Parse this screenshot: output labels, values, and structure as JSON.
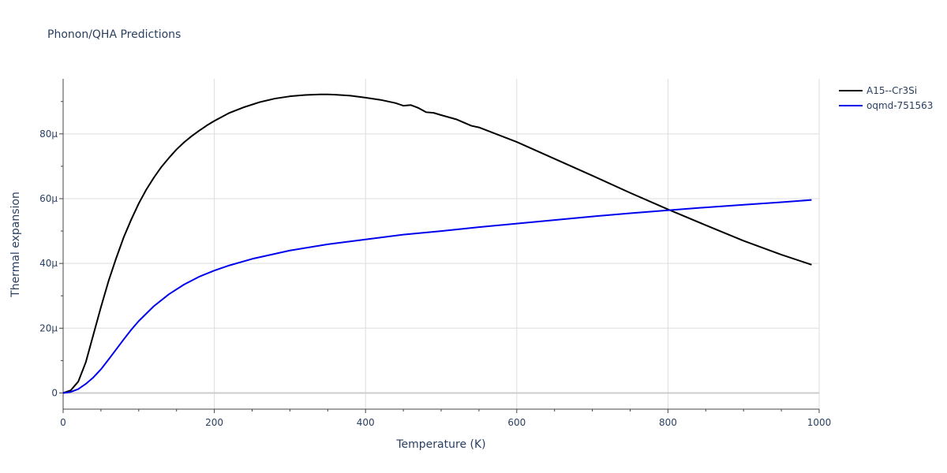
{
  "chart_data": {
    "type": "line",
    "title": "Phonon/QHA Predictions",
    "xlabel": "Temperature (K)",
    "ylabel": "Thermal expansion",
    "xlim": [
      0,
      1000
    ],
    "ylim": [
      -5e-06,
      9.7e-05
    ],
    "x_ticks": [
      0,
      200,
      400,
      600,
      800,
      1000
    ],
    "x_tick_labels": [
      "0",
      "200",
      "400",
      "600",
      "800",
      "1000"
    ],
    "y_ticks": [
      0,
      2e-05,
      4e-05,
      6e-05,
      8e-05
    ],
    "y_tick_labels": [
      "0",
      "20μ",
      "40μ",
      "60μ",
      "80μ"
    ],
    "grid": true,
    "legend_position": "top-right",
    "series": [
      {
        "name": "A15--Cr3Si",
        "color": "#000000",
        "x": [
          0,
          10,
          20,
          30,
          40,
          50,
          60,
          70,
          80,
          90,
          100,
          110,
          120,
          130,
          140,
          150,
          160,
          170,
          180,
          190,
          200,
          220,
          240,
          260,
          280,
          300,
          320,
          340,
          350,
          360,
          380,
          400,
          420,
          440,
          450,
          460,
          470,
          480,
          490,
          500,
          520,
          540,
          550,
          600,
          650,
          700,
          750,
          800,
          850,
          900,
          950,
          990
        ],
        "y": [
          0,
          8e-07,
          3.5e-06,
          9.5e-06,
          1.8e-05,
          2.65e-05,
          3.45e-05,
          4.15e-05,
          4.8e-05,
          5.35e-05,
          5.85e-05,
          6.28e-05,
          6.65e-05,
          6.98e-05,
          7.26e-05,
          7.52e-05,
          7.74e-05,
          7.93e-05,
          8.1e-05,
          8.26e-05,
          8.4e-05,
          8.65e-05,
          8.83e-05,
          8.98e-05,
          9.09e-05,
          9.16e-05,
          9.2e-05,
          9.22e-05,
          9.22e-05,
          9.21e-05,
          9.18e-05,
          9.12e-05,
          9.05e-05,
          8.95e-05,
          8.87e-05,
          8.89e-05,
          8.8e-05,
          8.67e-05,
          8.65e-05,
          8.58e-05,
          8.45e-05,
          8.25e-05,
          8.2e-05,
          7.75e-05,
          7.23e-05,
          6.71e-05,
          6.18e-05,
          5.67e-05,
          5.18e-05,
          4.7e-05,
          4.27e-05,
          3.96e-05
        ]
      },
      {
        "name": "oqmd-751563",
        "color": "#0000ee",
        "x": [
          0,
          10,
          20,
          30,
          40,
          50,
          60,
          70,
          80,
          90,
          100,
          120,
          140,
          160,
          180,
          200,
          220,
          250,
          300,
          350,
          400,
          450,
          500,
          550,
          600,
          650,
          700,
          750,
          800,
          850,
          900,
          950,
          990
        ],
        "y": [
          0,
          3e-07,
          1.2e-06,
          2.8e-06,
          4.8e-06,
          7.3e-06,
          1.03e-05,
          1.34e-05,
          1.65e-05,
          1.95e-05,
          2.22e-05,
          2.68e-05,
          3.05e-05,
          3.35e-05,
          3.59e-05,
          3.78e-05,
          3.94e-05,
          4.14e-05,
          4.4e-05,
          4.59e-05,
          4.74e-05,
          4.89e-05,
          5e-05,
          5.12e-05,
          5.23e-05,
          5.34e-05,
          5.45e-05,
          5.55e-05,
          5.64e-05,
          5.73e-05,
          5.81e-05,
          5.89e-05,
          5.96e-05
        ]
      }
    ]
  }
}
